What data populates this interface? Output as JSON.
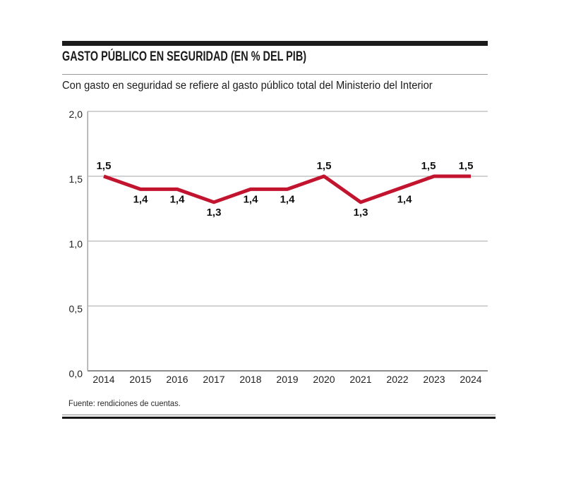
{
  "header": {
    "title": "GASTO PÚBLICO EN SEGURIDAD (EN % DEL PIB)",
    "subtitle": "Con gasto en seguridad se refiere al gasto público total del Ministerio del Interior"
  },
  "footer": {
    "source": "Fuente: rendiciones de cuentas."
  },
  "colors": {
    "accent_line": "#c3142f",
    "grid": "#a5a5a5",
    "axis": "#8c8c8c",
    "ink": "#1b1b1b",
    "tick_text": "#222222",
    "data_label_text": "#111111"
  },
  "chart_data": {
    "type": "line",
    "title": "GASTO PÚBLICO EN SEGURIDAD (EN % DEL PIB)",
    "subtitle": "Con gasto en seguridad se refiere al gasto público total del Ministerio del Interior",
    "categories": [
      "2014",
      "2015",
      "2016",
      "2017",
      "2018",
      "2019",
      "2020",
      "2021",
      "2022",
      "2023",
      "2024"
    ],
    "values": [
      1.5,
      1.4,
      1.4,
      1.3,
      1.4,
      1.4,
      1.5,
      1.3,
      1.4,
      1.5,
      1.5
    ],
    "point_labels": [
      "1,5",
      "1,4",
      "1,4",
      "1,3",
      "1,4",
      "1,4",
      "1,5",
      "1,3",
      "1,4",
      "1,5",
      "1,5"
    ],
    "yticks": [
      {
        "label": "2,0",
        "value": 2.0
      },
      {
        "label": "1,5",
        "value": 1.5
      },
      {
        "label": "1,0",
        "value": 1.0
      },
      {
        "label": "0,5",
        "value": 0.5
      },
      {
        "label": "0,0",
        "value": 0.0
      }
    ],
    "ylim": [
      0.0,
      2.0
    ],
    "xlabel": "",
    "ylabel": "",
    "grid": "horizontal",
    "legend": "none",
    "line_color": "#c3142f",
    "label_above_threshold": 1.5,
    "label_dx": [
      0,
      0,
      0,
      0,
      0,
      0,
      0,
      0,
      10,
      -8,
      -7
    ],
    "source": "Fuente: rendiciones de cuentas."
  }
}
